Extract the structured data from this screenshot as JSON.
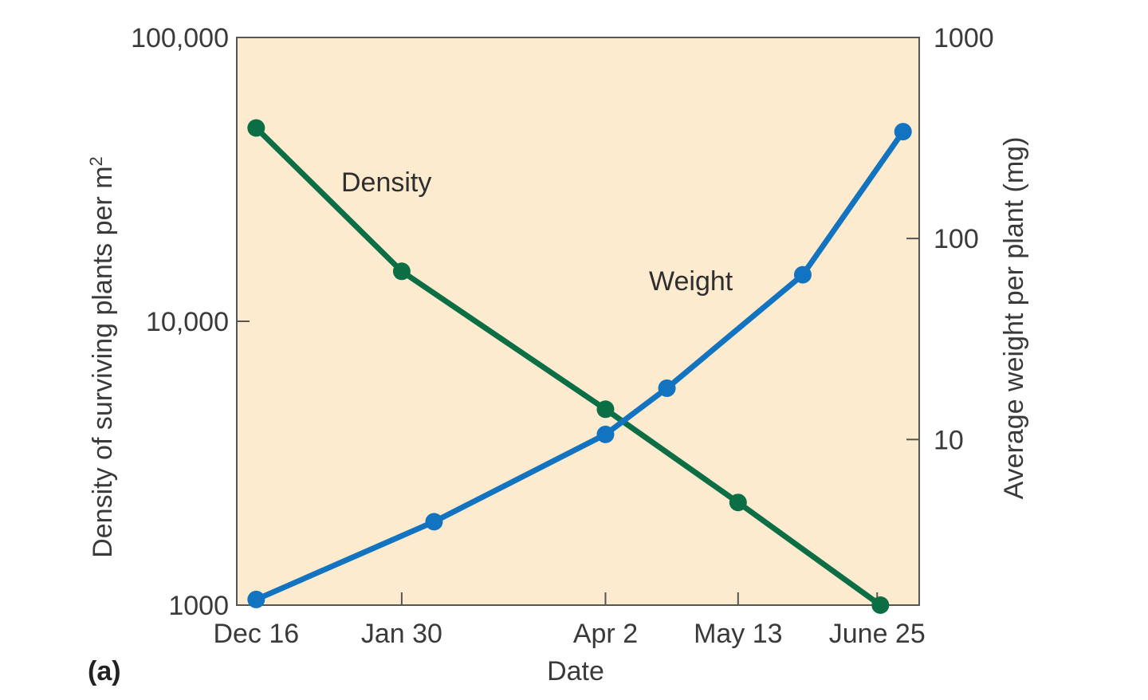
{
  "chart_data": {
    "type": "line",
    "panel_label": "(a)",
    "xlabel": "Date",
    "ylabel": "Density of surviving plants per m",
    "ylabel_superscript": "2",
    "y2label": "Average weight per plant (mg)",
    "x_ticks": [
      {
        "label": "Dec 16",
        "day": 0
      },
      {
        "label": "Jan 30",
        "day": 45
      },
      {
        "label": "Apr 2",
        "day": 108
      },
      {
        "label": "May 13",
        "day": 149
      },
      {
        "label": "June 25",
        "day": 192
      }
    ],
    "xlim": [
      -6,
      205
    ],
    "y_left": {
      "scale": "log",
      "ylim": [
        1000,
        100000
      ],
      "ticks": [
        {
          "value": 1000,
          "label": "1000"
        },
        {
          "value": 10000,
          "label": "10,000"
        },
        {
          "value": 100000,
          "label": "100,000"
        }
      ]
    },
    "y_right": {
      "scale": "log",
      "ylim": [
        1.5,
        1000
      ],
      "ticks": [
        {
          "value": 10,
          "label": "10"
        },
        {
          "value": 100,
          "label": "100"
        },
        {
          "value": 1000,
          "label": "1000"
        }
      ]
    },
    "series": [
      {
        "name": "Density",
        "axis": "left",
        "color": "#0b6e45",
        "points": [
          {
            "day": 0,
            "value": 48000
          },
          {
            "day": 45,
            "value": 15000
          },
          {
            "day": 108,
            "value": 4900
          },
          {
            "day": 149,
            "value": 2300
          },
          {
            "day": 193,
            "value": 1000
          }
        ]
      },
      {
        "name": "Weight",
        "axis": "right",
        "color": "#1274c0",
        "points": [
          {
            "day": 0,
            "value": 1.6
          },
          {
            "day": 55,
            "value": 3.9
          },
          {
            "day": 108,
            "value": 10.6
          },
          {
            "day": 127,
            "value": 18
          },
          {
            "day": 169,
            "value": 66
          },
          {
            "day": 200,
            "value": 340
          }
        ]
      }
    ],
    "background_color": "#fdebcf"
  }
}
